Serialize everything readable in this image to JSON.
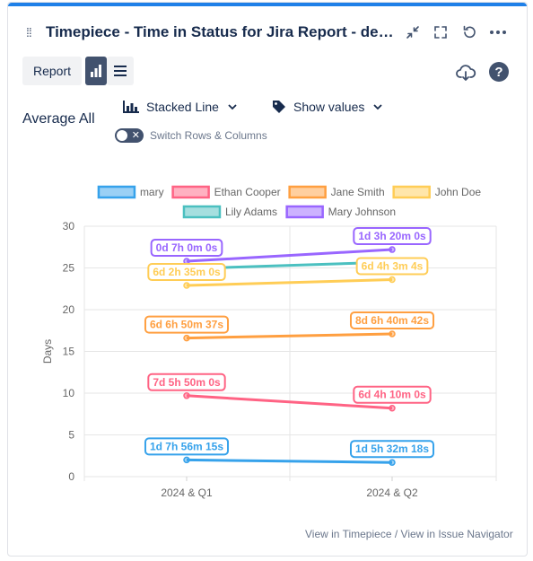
{
  "header": {
    "title": "Timepiece - Time in Status for Jira Report - demo (DEMO)",
    "icons": [
      "drag-handle-icon",
      "minimize-icon",
      "fullscreen-icon",
      "refresh-icon",
      "more-icon"
    ]
  },
  "toolbar": {
    "report_label": "Report",
    "chart_view_icon": "bar-chart-icon",
    "table_view_icon": "list-icon",
    "download_icon": "cloud-download-icon",
    "help_label": "?"
  },
  "controls": {
    "chart_type": "Stacked Line",
    "show_values": "Show values",
    "switch_label": "Switch Rows & Columns",
    "aggregate_label": "Average All"
  },
  "chart_data": {
    "type": "line",
    "title": "",
    "xlabel": "",
    "ylabel": "Days",
    "categories": [
      "2024 & Q1",
      "2024 & Q2"
    ],
    "ylim": [
      0,
      30
    ],
    "yticks": [
      0,
      5,
      10,
      15,
      20,
      25,
      30
    ],
    "grid": true,
    "legend_position": "top",
    "series": [
      {
        "name": "mary",
        "color": "#36a2eb",
        "values": [
          2.0,
          1.7
        ],
        "labels": [
          "1d 7h 56m 15s",
          "1d 5h 32m 18s"
        ]
      },
      {
        "name": "Ethan Cooper",
        "color": "#ff6384",
        "values": [
          9.7,
          8.2
        ],
        "labels": [
          "7d 5h 50m 0s",
          "6d 4h 10m 0s"
        ]
      },
      {
        "name": "Jane Smith",
        "color": "#ff9f40",
        "values": [
          16.6,
          17.1
        ],
        "labels": [
          "6d 6h 50m 37s",
          "8d 6h 40m 42s"
        ]
      },
      {
        "name": "John Doe",
        "color": "#ffcd56",
        "values": [
          22.9,
          23.6
        ],
        "labels": [
          "6d 2h 35m 0s",
          "6d 4h 3m 4s"
        ]
      },
      {
        "name": "Lily Adams",
        "color": "#4bc0c0",
        "values": [
          24.9,
          25.7
        ],
        "labels": [
          "",
          ""
        ]
      },
      {
        "name": "Mary Johnson",
        "color": "#9966ff",
        "values": [
          25.8,
          27.2
        ],
        "labels": [
          "0d 7h 0m 0s",
          "1d 3h 20m 0s"
        ]
      }
    ]
  },
  "footer": {
    "link_timepiece": "View in Timepiece",
    "separator": "/",
    "link_navigator": "View in Issue Navigator"
  }
}
